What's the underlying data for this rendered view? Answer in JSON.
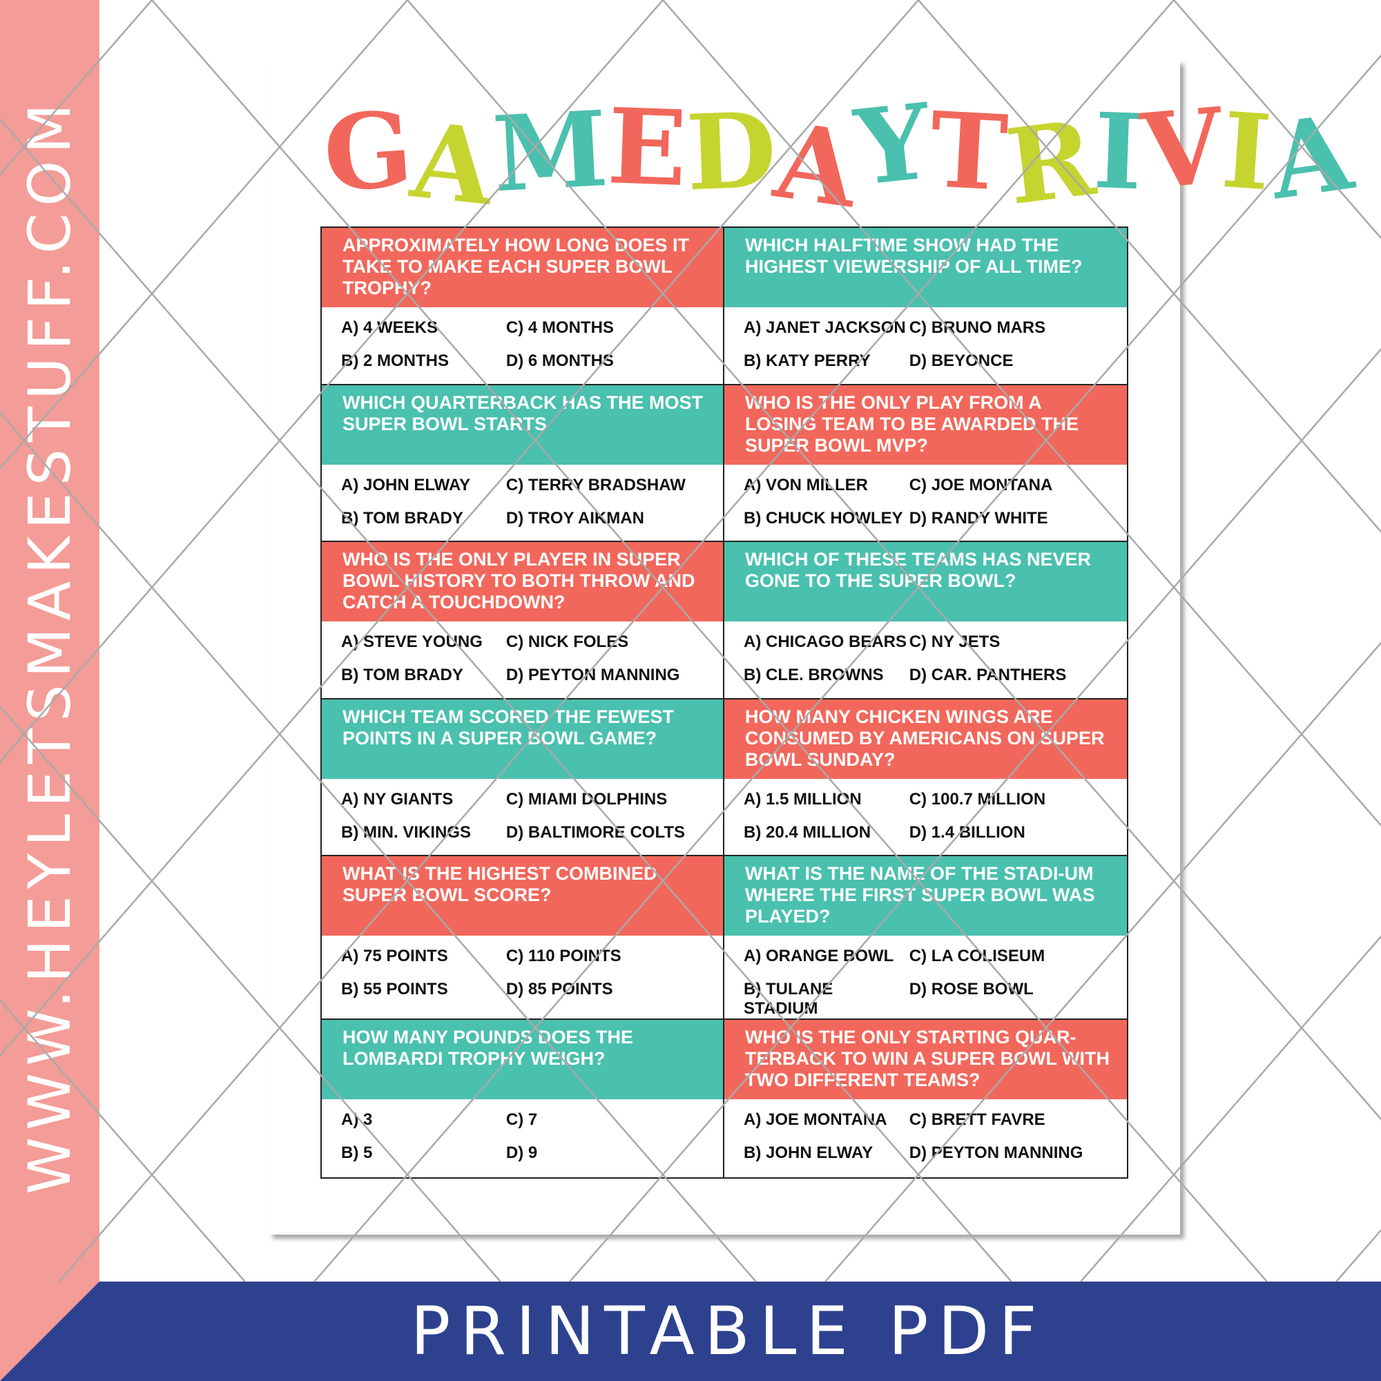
{
  "side_text": "WWW.HEYLETSMAKESTUFF.COM",
  "banner": "PRINTABLE PDF",
  "colors": {
    "coral": "#F2675B",
    "teal": "#4AC0AE",
    "lime": "#C6D42F",
    "pink": "#F49C97",
    "navy": "#2E418F"
  },
  "title": {
    "letters": [
      [
        "G",
        "coral"
      ],
      [
        "A",
        "lime"
      ],
      [
        "M",
        "teal"
      ],
      [
        "E",
        "coral"
      ],
      [
        " ",
        ""
      ],
      [
        "D",
        "lime"
      ],
      [
        "A",
        "coral"
      ],
      [
        "Y",
        "teal"
      ],
      [
        " ",
        ""
      ],
      [
        "T",
        "coral"
      ],
      [
        "R",
        "lime"
      ],
      [
        "I",
        "teal"
      ],
      [
        "V",
        "coral"
      ],
      [
        "I",
        "lime"
      ],
      [
        "A",
        "teal"
      ]
    ],
    "text": "GAME DAY TRIVIA"
  },
  "cards": [
    {
      "color": "coral",
      "q": "Approximately how long does it take to make each super bowl trophy?",
      "a": [
        "A) 4 WEEKS",
        "C) 4 MONTHS",
        "B) 2 MONTHS",
        "D) 6 MONTHS"
      ]
    },
    {
      "color": "teal",
      "q": "Which halftime show had the highest viewership of all time?",
      "a": [
        "A) JANET JACKSON",
        "C) BRUNO MARS",
        "B) KATY PERRY",
        "D) BEYONCE"
      ]
    },
    {
      "color": "teal",
      "q": "Which quarterback has the most super bowl starts",
      "a": [
        "A) JOHN ELWAY",
        "C) TERRY BRADSHAW",
        "B) TOM BRADY",
        "D) TROY AIKMAN"
      ]
    },
    {
      "color": "coral",
      "q": "Who is the only play from a losing team to be awarded the super bowl MVP?",
      "a": [
        "A) VON MILLER",
        "C) JOE MONTANA",
        "B) CHUCK HOWLEY",
        "D) RANDY WHITE"
      ]
    },
    {
      "color": "coral",
      "q": "Who is the only player in super bowl history to both throw and catch a touchdown?",
      "a": [
        "A) STEVE YOUNG",
        "C) NICK FOLES",
        "B) TOM BRADY",
        "D) PEYTON MANNING"
      ]
    },
    {
      "color": "teal",
      "q": "Which of these teams has never gone to the super bowl?",
      "a": [
        "A) CHICAGO BEARS",
        "C) NY JETS",
        "B) CLE. BROWNS",
        "D) CAR. PANTHERS"
      ]
    },
    {
      "color": "teal",
      "q": "Which team scored the fewest points in a super bowl game?",
      "a": [
        "A) NY GIANTS",
        "C) MIAMI DOLPHINS",
        "B) MIN. VIKINGS",
        "D) BALTIMORE COLTS"
      ]
    },
    {
      "color": "coral",
      "q": "How many chicken wings are consumed by americans on super bowl sunday?",
      "a": [
        "A) 1.5 MILLION",
        "C) 100.7 MILLION",
        "B) 20.4 MILLION",
        "D) 1.4 BILLION"
      ]
    },
    {
      "color": "coral",
      "q": "What is the highest combined super bowl score?",
      "a": [
        "A) 75 POINTS",
        "C) 110 POINTS",
        "B) 55 POINTS",
        "D) 85 POINTS"
      ]
    },
    {
      "color": "teal",
      "q": "What is the name of the stadi-um where the first super bowl was played?",
      "a": [
        "A) ORANGE BOWL",
        "C) LA COLISEUM",
        "B) TULANE STADIUM",
        "D) ROSE BOWL"
      ]
    },
    {
      "color": "teal",
      "q": "How many pounds does the lombardi trophy weigh?",
      "a": [
        "A) 3",
        "C) 7",
        "B) 5",
        "D) 9"
      ]
    },
    {
      "color": "coral",
      "q": "Who is the only starting quar-terback to win a super bowl with two different teams?",
      "a": [
        "A) JOE MONTANA",
        "C) BRETT FAVRE",
        "B) JOHN ELWAY",
        "D) PEYTON MANNING"
      ]
    }
  ]
}
